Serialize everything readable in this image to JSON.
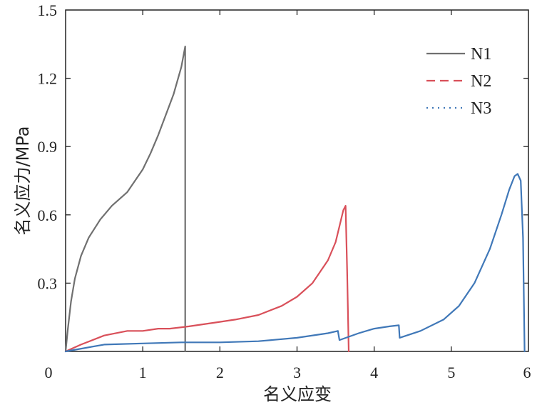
{
  "chart_data": {
    "type": "line",
    "xlabel": "名义应变",
    "ylabel": "名义应力/MPa",
    "xlim": [
      0,
      6
    ],
    "ylim": [
      0,
      1.5
    ],
    "xticks": [
      "0",
      "1",
      "2",
      "3",
      "4",
      "5",
      "6"
    ],
    "yticks": [
      "0.3",
      "0.6",
      "0.9",
      "1.2",
      "1.5"
    ],
    "legend_position": "top-right",
    "grid": false,
    "series": [
      {
        "name": "N1",
        "color": "#707070",
        "style": "solid",
        "x": [
          0,
          0.03,
          0.07,
          0.12,
          0.2,
          0.3,
          0.45,
          0.6,
          0.8,
          1.0,
          1.1,
          1.2,
          1.3,
          1.4,
          1.5,
          1.55,
          1.55
        ],
        "y": [
          0,
          0.1,
          0.22,
          0.32,
          0.42,
          0.5,
          0.58,
          0.64,
          0.7,
          0.8,
          0.87,
          0.95,
          1.04,
          1.13,
          1.25,
          1.34,
          0
        ]
      },
      {
        "name": "N2",
        "color": "#d9505a",
        "style": "dashed",
        "x": [
          0,
          0.2,
          0.5,
          0.8,
          1.0,
          1.2,
          1.35,
          1.6,
          2.0,
          2.2,
          2.5,
          2.8,
          3.0,
          3.2,
          3.4,
          3.5,
          3.55,
          3.6,
          3.63,
          3.65,
          3.67
        ],
        "y": [
          0,
          0.03,
          0.07,
          0.09,
          0.09,
          0.1,
          0.1,
          0.11,
          0.13,
          0.14,
          0.16,
          0.2,
          0.24,
          0.3,
          0.4,
          0.48,
          0.55,
          0.62,
          0.64,
          0.35,
          0
        ]
      },
      {
        "name": "N3",
        "color": "#4078b8",
        "style": "dotted",
        "x": [
          0,
          0.5,
          1.0,
          1.5,
          2.0,
          2.5,
          3.0,
          3.4,
          3.53,
          3.55,
          3.8,
          4.0,
          4.2,
          4.32,
          4.33,
          4.6,
          4.9,
          5.1,
          5.3,
          5.5,
          5.65,
          5.75,
          5.82,
          5.86,
          5.9,
          5.93,
          5.95
        ],
        "y": [
          0,
          0.03,
          0.035,
          0.04,
          0.04,
          0.045,
          0.06,
          0.08,
          0.09,
          0.05,
          0.08,
          0.1,
          0.11,
          0.115,
          0.06,
          0.09,
          0.14,
          0.2,
          0.3,
          0.45,
          0.6,
          0.71,
          0.77,
          0.78,
          0.75,
          0.5,
          0
        ]
      }
    ]
  }
}
